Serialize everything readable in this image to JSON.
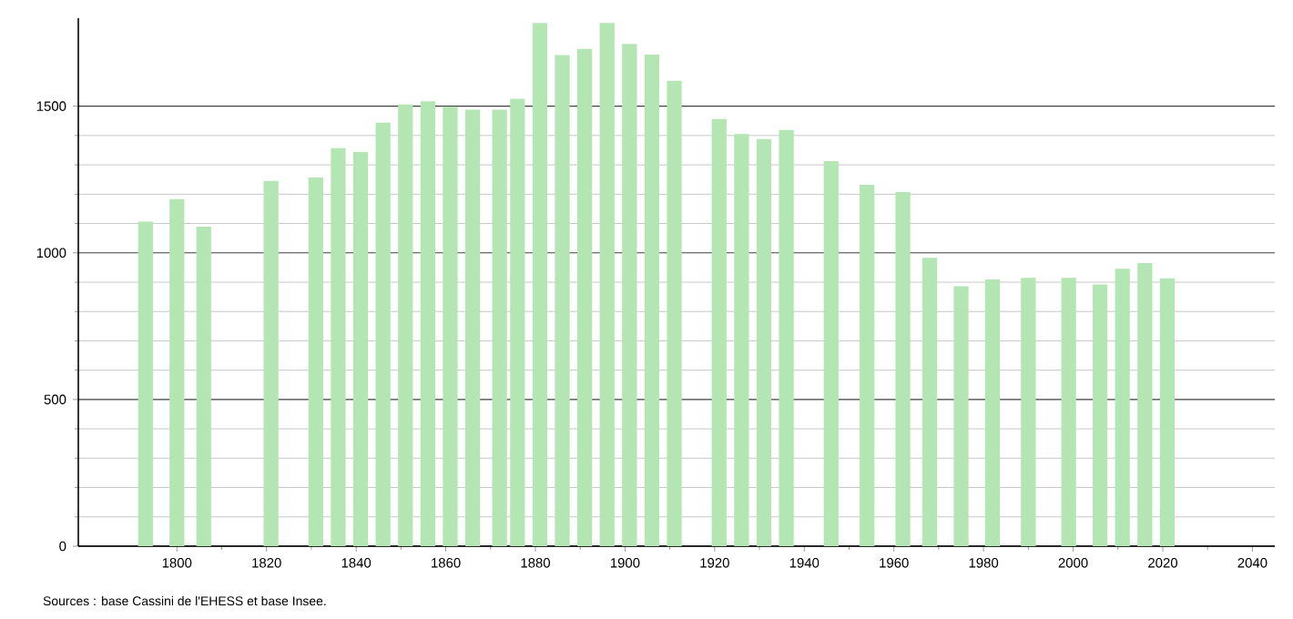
{
  "chart_data": {
    "type": "bar",
    "x": [
      1793,
      1800,
      1806,
      1821,
      1831,
      1836,
      1841,
      1846,
      1851,
      1856,
      1861,
      1866,
      1872,
      1876,
      1881,
      1886,
      1891,
      1896,
      1901,
      1906,
      1911,
      1921,
      1926,
      1931,
      1936,
      1946,
      1954,
      1962,
      1968,
      1975,
      1982,
      1990,
      1999,
      2006,
      2011,
      2016,
      2021
    ],
    "values": [
      1106,
      1183,
      1089,
      1245,
      1257,
      1357,
      1344,
      1444,
      1506,
      1517,
      1498,
      1488,
      1488,
      1525,
      1784,
      1674,
      1695,
      1784,
      1712,
      1676,
      1587,
      1456,
      1405,
      1388,
      1419,
      1313,
      1232,
      1207,
      983,
      886,
      909,
      915,
      915,
      892,
      946,
      965,
      913
    ],
    "color": "#b3e6b3",
    "xlim": [
      1778,
      2045
    ],
    "xticks": [
      1800,
      1820,
      1840,
      1860,
      1880,
      1900,
      1920,
      1940,
      1960,
      1980,
      2000,
      2020,
      2040
    ],
    "ylim": [
      0,
      1800
    ],
    "yticks": [
      0,
      500,
      1000,
      1500
    ],
    "grid": "y",
    "annotations": [
      "Sources : base Cassini de l'EHESS et base Insee."
    ]
  }
}
